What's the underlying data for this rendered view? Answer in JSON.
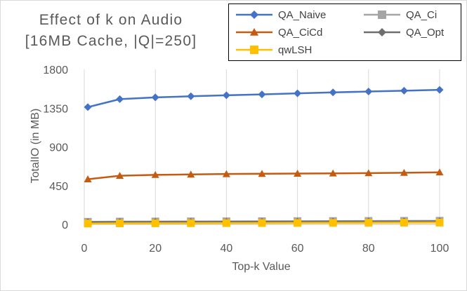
{
  "chart_data": {
    "type": "line",
    "title_lines": [
      "Effect of k on Audio",
      "[16MB Cache, |Q|=250]"
    ],
    "xlabel": "Top-k Value",
    "ylabel": "TotalIO (in MB)",
    "x": [
      1,
      10,
      20,
      30,
      40,
      50,
      60,
      70,
      80,
      90,
      100
    ],
    "xlim": [
      0,
      100
    ],
    "ylim": [
      0,
      1800
    ],
    "xticks": [
      0,
      20,
      40,
      60,
      80,
      100
    ],
    "yticks": [
      0,
      450,
      900,
      1350,
      1800
    ],
    "grid": "vertical",
    "legend_position": "top-right",
    "series": [
      {
        "name": "QA_Naive",
        "color": "#4472C4",
        "marker": "diamond",
        "values": [
          1362,
          1455,
          1475,
          1488,
          1500,
          1510,
          1522,
          1533,
          1543,
          1553,
          1563
        ]
      },
      {
        "name": "QA_Ci",
        "color": "#A5A5A5",
        "marker": "square",
        "values": [
          30,
          33,
          34,
          35,
          36,
          37,
          38,
          39,
          40,
          41,
          42
        ]
      },
      {
        "name": "QA_CiCd",
        "color": "#C55A11",
        "marker": "triangle",
        "values": [
          525,
          565,
          575,
          580,
          585,
          588,
          590,
          593,
          596,
          600,
          605
        ]
      },
      {
        "name": "QA_Opt",
        "color": "#6E6E6E",
        "marker": "diamond",
        "values": [
          25,
          27,
          28,
          29,
          30,
          31,
          32,
          33,
          34,
          35,
          36
        ]
      },
      {
        "name": "qwLSH",
        "color": "#FFC000",
        "marker": "square",
        "values": [
          10,
          12,
          13,
          14,
          15,
          16,
          17,
          18,
          19,
          20,
          21
        ]
      }
    ]
  }
}
